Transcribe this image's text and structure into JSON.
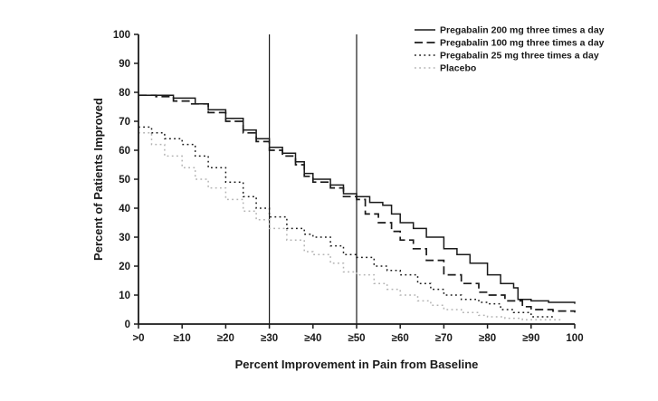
{
  "figure": {
    "description": "Responder curve: percent of patients improved by level of pain improvement from baseline"
  },
  "chart_data": {
    "type": "line",
    "title": "",
    "xlabel": "Percent Improvement in Pain from Baseline",
    "ylabel": "Percent of Patients Improved",
    "xlim": [
      0,
      100
    ],
    "ylim": [
      0,
      100
    ],
    "grid": false,
    "legend_position": "top-right",
    "x_tick_values": [
      0,
      10,
      20,
      30,
      40,
      50,
      60,
      70,
      80,
      90,
      100
    ],
    "x_tick_labels": [
      ">0",
      "≥10",
      "≥20",
      "≥30",
      "≥40",
      "≥50",
      "≥60",
      "≥70",
      "≥80",
      "≥90",
      "100"
    ],
    "y_tick_values": [
      0,
      10,
      20,
      30,
      40,
      50,
      60,
      70,
      80,
      90,
      100
    ],
    "reference_lines_x": [
      30,
      50
    ],
    "axis_color": "#1a1a1a",
    "series": [
      {
        "name": "Pregabalin 200 mg three times a day",
        "line_style": "solid",
        "color": "#1a1a1a",
        "points": [
          [
            0,
            79
          ],
          [
            4,
            79
          ],
          [
            8,
            78
          ],
          [
            10,
            78
          ],
          [
            13,
            76
          ],
          [
            16,
            74
          ],
          [
            20,
            71
          ],
          [
            24,
            67
          ],
          [
            27,
            64
          ],
          [
            30,
            61
          ],
          [
            33,
            59
          ],
          [
            36,
            56
          ],
          [
            38,
            52
          ],
          [
            40,
            50
          ],
          [
            44,
            48
          ],
          [
            47,
            45
          ],
          [
            50,
            44
          ],
          [
            53,
            42
          ],
          [
            56,
            41
          ],
          [
            58,
            38
          ],
          [
            60,
            35
          ],
          [
            63,
            33
          ],
          [
            66,
            30
          ],
          [
            70,
            26
          ],
          [
            73,
            24
          ],
          [
            76,
            21
          ],
          [
            80,
            17
          ],
          [
            83,
            14
          ],
          [
            86,
            12.5
          ],
          [
            87,
            8.5
          ],
          [
            90,
            8
          ],
          [
            94,
            7.5
          ],
          [
            100,
            7
          ]
        ]
      },
      {
        "name": "Pregabalin 100 mg three times a day",
        "line_style": "dashed",
        "color": "#1a1a1a",
        "points": [
          [
            0,
            79
          ],
          [
            4,
            78.5
          ],
          [
            8,
            77
          ],
          [
            12,
            76
          ],
          [
            16,
            73
          ],
          [
            20,
            70
          ],
          [
            24,
            66
          ],
          [
            27,
            63
          ],
          [
            30,
            60
          ],
          [
            33,
            58
          ],
          [
            36,
            55
          ],
          [
            38,
            51
          ],
          [
            40,
            49
          ],
          [
            44,
            47
          ],
          [
            47,
            44
          ],
          [
            50,
            43
          ],
          [
            52,
            38
          ],
          [
            55,
            35
          ],
          [
            58,
            32
          ],
          [
            60,
            29
          ],
          [
            63,
            26
          ],
          [
            66,
            22
          ],
          [
            70,
            17
          ],
          [
            74,
            14
          ],
          [
            78,
            11
          ],
          [
            80,
            10
          ],
          [
            84,
            8
          ],
          [
            88,
            6
          ],
          [
            90,
            5
          ],
          [
            95,
            4.5
          ],
          [
            100,
            4
          ]
        ]
      },
      {
        "name": "Pregabalin 25 mg three times a day",
        "line_style": "dotted",
        "color": "#1a1a1a",
        "points": [
          [
            0,
            68
          ],
          [
            3,
            66
          ],
          [
            6,
            64
          ],
          [
            10,
            62
          ],
          [
            13,
            58
          ],
          [
            16,
            54
          ],
          [
            20,
            49
          ],
          [
            24,
            44
          ],
          [
            27,
            40
          ],
          [
            30,
            37
          ],
          [
            34,
            33
          ],
          [
            38,
            31
          ],
          [
            40,
            30
          ],
          [
            44,
            27
          ],
          [
            47,
            24
          ],
          [
            50,
            23
          ],
          [
            54,
            20
          ],
          [
            57,
            18.5
          ],
          [
            60,
            17
          ],
          [
            64,
            14
          ],
          [
            67,
            12
          ],
          [
            70,
            10
          ],
          [
            74,
            8.5
          ],
          [
            78,
            7.5
          ],
          [
            80,
            7
          ],
          [
            83,
            5
          ],
          [
            86,
            4
          ],
          [
            90,
            2.5
          ],
          [
            95,
            2
          ]
        ]
      },
      {
        "name": "Placebo",
        "line_style": "dotted",
        "color": "#b3b3b3",
        "points": [
          [
            0,
            66
          ],
          [
            3,
            62
          ],
          [
            6,
            58
          ],
          [
            10,
            54
          ],
          [
            13,
            50
          ],
          [
            16,
            47
          ],
          [
            20,
            43
          ],
          [
            24,
            39
          ],
          [
            27,
            36
          ],
          [
            30,
            33
          ],
          [
            34,
            29
          ],
          [
            38,
            25
          ],
          [
            40,
            24
          ],
          [
            44,
            21
          ],
          [
            47,
            18
          ],
          [
            50,
            17
          ],
          [
            54,
            14
          ],
          [
            57,
            12
          ],
          [
            60,
            10
          ],
          [
            64,
            8
          ],
          [
            67,
            6.5
          ],
          [
            70,
            5
          ],
          [
            74,
            4
          ],
          [
            78,
            3
          ],
          [
            80,
            2.5
          ],
          [
            84,
            2
          ],
          [
            88,
            1.5
          ],
          [
            92,
            1.5
          ],
          [
            97,
            1
          ]
        ]
      }
    ]
  }
}
